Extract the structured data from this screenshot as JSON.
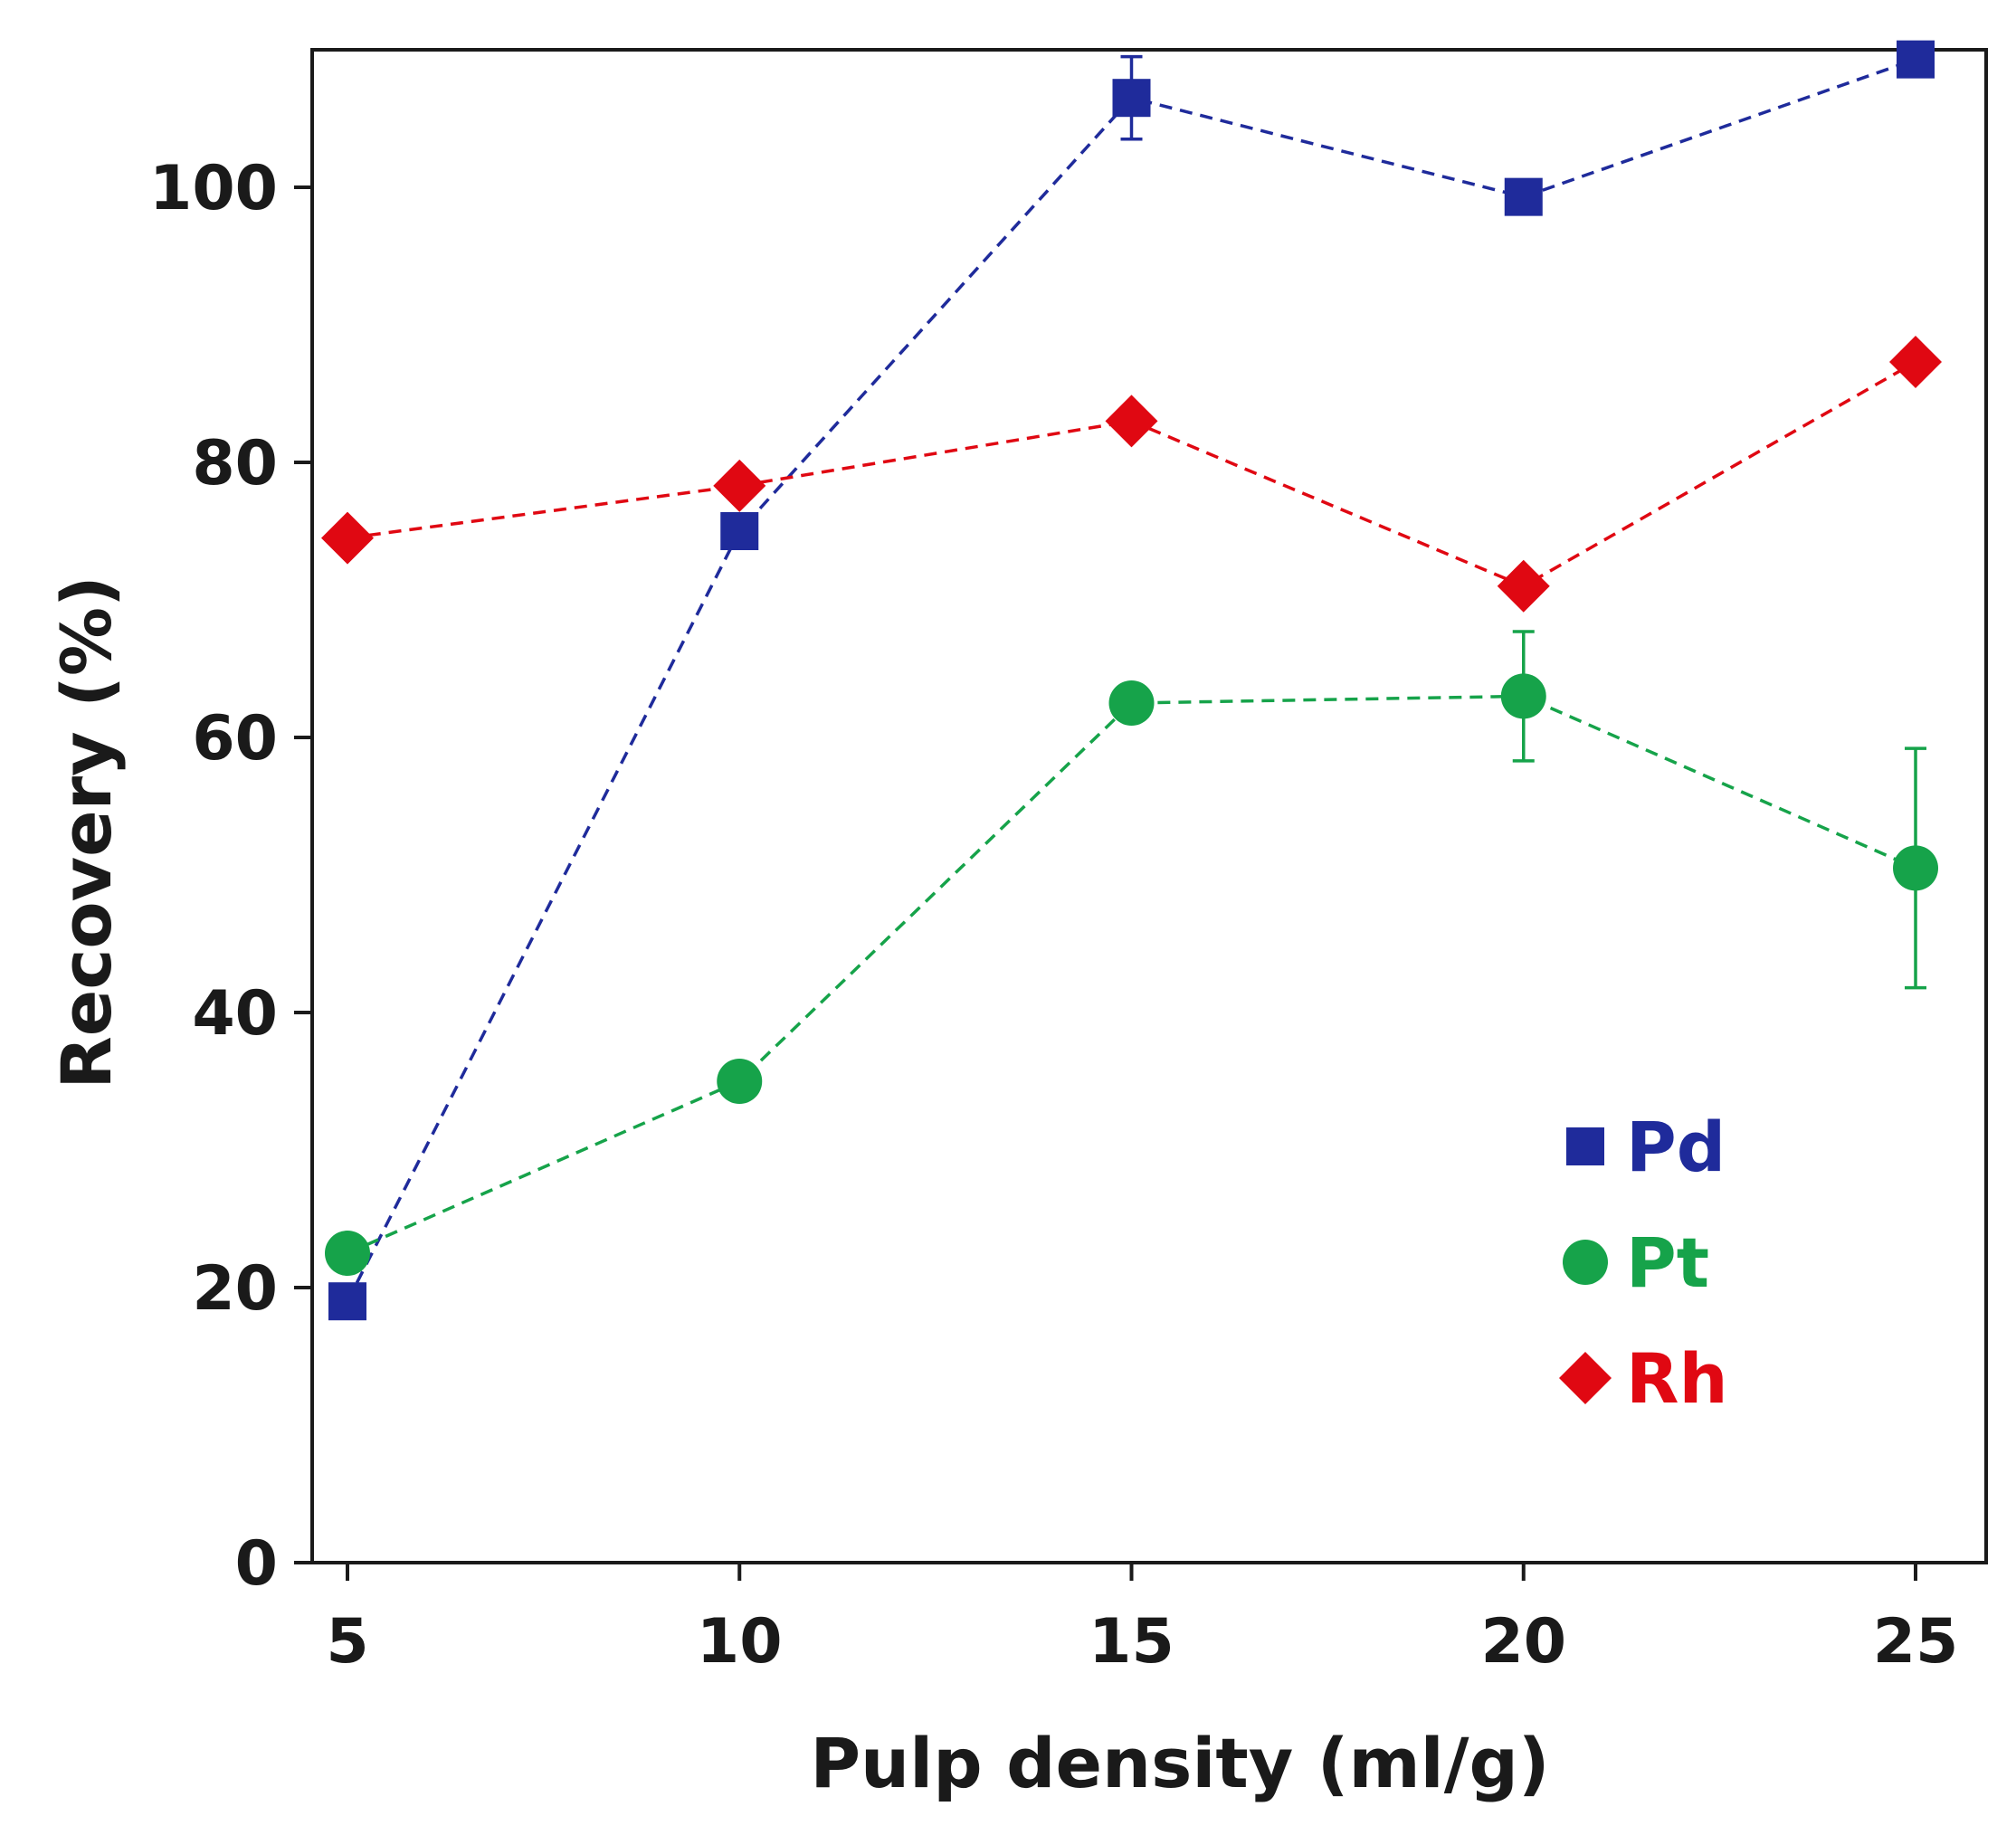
{
  "chart_data": {
    "type": "scatter",
    "xlabel": "Pulp density (ml/g)",
    "ylabel": "Recovery (%)",
    "xlim": [
      4.55,
      25.9
    ],
    "ylim": [
      0,
      110
    ],
    "xticks": [
      5,
      10,
      15,
      20,
      25
    ],
    "yticks": [
      0,
      20,
      40,
      60,
      80,
      100
    ],
    "grid": false,
    "legend_position": "bottom-right",
    "series": [
      {
        "name": "Pd",
        "marker": "square",
        "color": "#1f2b9b",
        "x": [
          5,
          10,
          15,
          20,
          25
        ],
        "y": [
          19,
          75,
          106.5,
          99.3,
          109.3
        ],
        "error": [
          0,
          0,
          3,
          0,
          0
        ]
      },
      {
        "name": "Pt",
        "marker": "circle",
        "color": "#16a34a",
        "x": [
          5,
          10,
          15,
          20,
          25
        ],
        "y": [
          22.5,
          35,
          62.5,
          63,
          50.5
        ],
        "error": [
          0,
          0,
          0,
          4.7,
          8.7
        ]
      },
      {
        "name": "Rh",
        "marker": "diamond",
        "color": "#e00812",
        "x": [
          5,
          10,
          15,
          20,
          25
        ],
        "y": [
          74.5,
          78.3,
          83,
          71,
          87.3
        ],
        "error": [
          0,
          0,
          0,
          0,
          0
        ]
      }
    ]
  }
}
